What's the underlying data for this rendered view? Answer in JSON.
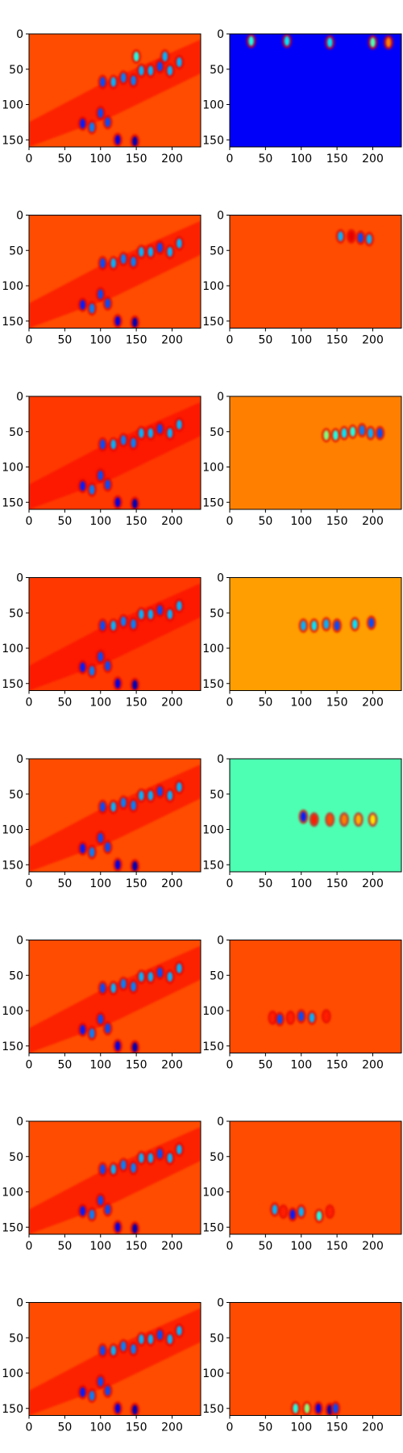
{
  "figure": {
    "rows": 8,
    "cols": 2,
    "colormap": "jet",
    "image_extent": {
      "x": [
        0,
        240
      ],
      "y": [
        0,
        160
      ]
    },
    "x_ticks": [
      0,
      50,
      100,
      150,
      200
    ],
    "y_ticks": [
      0,
      50,
      100,
      150
    ],
    "y_axis_inverted": true
  },
  "chart_data": {
    "type": "heatmap",
    "colormap": "jet",
    "xlim": [
      0,
      240
    ],
    "ylim": [
      160,
      0
    ],
    "grid": false,
    "panels": [
      {
        "row": 1,
        "col": 1,
        "background": 0.8,
        "content": "full scene: bright elongated blobs in diagonal band from lower-left to upper-right",
        "blobs": [
          [
            75,
            127,
            0.15
          ],
          [
            88,
            132,
            0.25
          ],
          [
            100,
            112,
            0.2
          ],
          [
            110,
            125,
            0.2
          ],
          [
            124,
            150,
            0.1
          ],
          [
            148,
            152,
            0.05
          ],
          [
            103,
            68,
            0.2
          ],
          [
            118,
            68,
            0.3
          ],
          [
            132,
            62,
            0.25
          ],
          [
            146,
            66,
            0.25
          ],
          [
            157,
            52,
            0.3
          ],
          [
            170,
            52,
            0.3
          ],
          [
            183,
            46,
            0.2
          ],
          [
            197,
            52,
            0.3
          ],
          [
            210,
            40,
            0.3
          ],
          [
            150,
            32,
            0.4
          ],
          [
            190,
            32,
            0.3
          ]
        ]
      },
      {
        "row": 1,
        "col": 2,
        "background": 0.12,
        "content": "mostly dark blue with bright cyan/yellow band along the top rows",
        "blobs": [
          [
            30,
            10,
            0.4
          ],
          [
            80,
            10,
            0.35
          ],
          [
            140,
            12,
            0.35
          ],
          [
            200,
            12,
            0.45
          ],
          [
            222,
            12,
            0.75
          ]
        ]
      },
      {
        "row": 2,
        "col": 1,
        "background": 0.8,
        "content": "full scene, similar to row 1",
        "blobs": [
          [
            75,
            127,
            0.15
          ],
          [
            88,
            132,
            0.25
          ],
          [
            100,
            112,
            0.2
          ],
          [
            110,
            125,
            0.2
          ],
          [
            124,
            150,
            0.1
          ],
          [
            148,
            152,
            0.05
          ],
          [
            103,
            68,
            0.2
          ],
          [
            118,
            68,
            0.3
          ],
          [
            132,
            62,
            0.25
          ],
          [
            146,
            66,
            0.25
          ],
          [
            157,
            52,
            0.3
          ],
          [
            170,
            52,
            0.3
          ],
          [
            183,
            46,
            0.2
          ],
          [
            197,
            52,
            0.3
          ],
          [
            210,
            40,
            0.3
          ]
        ]
      },
      {
        "row": 2,
        "col": 2,
        "background": 0.8,
        "content": "flat orange with a narrow active band near y=30",
        "blobs": [
          [
            155,
            30,
            0.3
          ],
          [
            170,
            30,
            0.9
          ],
          [
            183,
            32,
            0.2
          ],
          [
            195,
            34,
            0.3
          ]
        ]
      },
      {
        "row": 3,
        "col": 1,
        "background": 0.82,
        "content": "full scene",
        "blobs": [
          [
            75,
            127,
            0.15
          ],
          [
            88,
            132,
            0.25
          ],
          [
            100,
            112,
            0.2
          ],
          [
            110,
            125,
            0.2
          ],
          [
            124,
            150,
            0.1
          ],
          [
            148,
            152,
            0.05
          ],
          [
            103,
            68,
            0.2
          ],
          [
            118,
            68,
            0.3
          ],
          [
            132,
            62,
            0.25
          ],
          [
            146,
            66,
            0.25
          ],
          [
            157,
            52,
            0.3
          ],
          [
            170,
            52,
            0.3
          ],
          [
            183,
            46,
            0.2
          ],
          [
            197,
            52,
            0.3
          ],
          [
            210,
            40,
            0.3
          ]
        ]
      },
      {
        "row": 3,
        "col": 2,
        "background": 0.75,
        "content": "flat orange with active band near y=50",
        "blobs": [
          [
            135,
            55,
            0.5
          ],
          [
            148,
            55,
            0.4
          ],
          [
            160,
            52,
            0.35
          ],
          [
            172,
            50,
            0.4
          ],
          [
            185,
            48,
            0.25
          ],
          [
            197,
            52,
            0.3
          ],
          [
            210,
            52,
            0.2
          ]
        ]
      },
      {
        "row": 4,
        "col": 1,
        "background": 0.82,
        "content": "full scene",
        "blobs": [
          [
            75,
            127,
            0.15
          ],
          [
            88,
            132,
            0.25
          ],
          [
            100,
            112,
            0.2
          ],
          [
            110,
            125,
            0.2
          ],
          [
            124,
            150,
            0.1
          ],
          [
            148,
            152,
            0.05
          ],
          [
            103,
            68,
            0.2
          ],
          [
            118,
            68,
            0.3
          ],
          [
            132,
            62,
            0.25
          ],
          [
            146,
            66,
            0.25
          ],
          [
            157,
            52,
            0.3
          ],
          [
            170,
            52,
            0.3
          ],
          [
            183,
            46,
            0.2
          ],
          [
            197,
            52,
            0.3
          ],
          [
            210,
            40,
            0.3
          ]
        ]
      },
      {
        "row": 4,
        "col": 2,
        "background": 0.72,
        "content": "flat orange-yellow with active band near y=68",
        "blobs": [
          [
            103,
            68,
            0.3
          ],
          [
            118,
            68,
            0.35
          ],
          [
            135,
            66,
            0.3
          ],
          [
            150,
            68,
            0.2
          ],
          [
            175,
            66,
            0.35
          ],
          [
            198,
            64,
            0.2
          ]
        ]
      },
      {
        "row": 5,
        "col": 1,
        "background": 0.8,
        "content": "full scene",
        "blobs": [
          [
            75,
            127,
            0.15
          ],
          [
            88,
            132,
            0.25
          ],
          [
            100,
            112,
            0.2
          ],
          [
            110,
            125,
            0.2
          ],
          [
            124,
            150,
            0.1
          ],
          [
            148,
            152,
            0.05
          ],
          [
            103,
            68,
            0.2
          ],
          [
            118,
            68,
            0.3
          ],
          [
            132,
            62,
            0.25
          ],
          [
            146,
            66,
            0.25
          ],
          [
            157,
            52,
            0.3
          ],
          [
            170,
            52,
            0.3
          ],
          [
            183,
            46,
            0.2
          ],
          [
            197,
            52,
            0.3
          ],
          [
            210,
            40,
            0.3
          ]
        ]
      },
      {
        "row": 5,
        "col": 2,
        "background": 0.45,
        "content": "uniform green with horizontal band near y=85",
        "blobs": [
          [
            103,
            82,
            0.15
          ],
          [
            118,
            86,
            0.85
          ],
          [
            140,
            86,
            0.8
          ],
          [
            160,
            86,
            0.75
          ],
          [
            180,
            86,
            0.7
          ],
          [
            200,
            86,
            0.65
          ]
        ]
      },
      {
        "row": 6,
        "col": 1,
        "background": 0.8,
        "content": "full scene",
        "blobs": [
          [
            75,
            127,
            0.15
          ],
          [
            88,
            132,
            0.25
          ],
          [
            100,
            112,
            0.2
          ],
          [
            110,
            125,
            0.2
          ],
          [
            124,
            150,
            0.1
          ],
          [
            148,
            152,
            0.05
          ],
          [
            103,
            68,
            0.2
          ],
          [
            118,
            68,
            0.3
          ],
          [
            132,
            62,
            0.25
          ],
          [
            146,
            66,
            0.25
          ],
          [
            157,
            52,
            0.3
          ],
          [
            170,
            52,
            0.3
          ],
          [
            183,
            46,
            0.2
          ],
          [
            197,
            52,
            0.3
          ],
          [
            210,
            40,
            0.3
          ]
        ]
      },
      {
        "row": 6,
        "col": 2,
        "background": 0.8,
        "content": "flat orange with active band near y=110",
        "blobs": [
          [
            60,
            110,
            0.85
          ],
          [
            70,
            112,
            0.2
          ],
          [
            85,
            110,
            0.85
          ],
          [
            100,
            108,
            0.2
          ],
          [
            115,
            110,
            0.3
          ],
          [
            135,
            108,
            0.85
          ]
        ]
      },
      {
        "row": 7,
        "col": 1,
        "background": 0.8,
        "content": "full scene",
        "blobs": [
          [
            75,
            127,
            0.15
          ],
          [
            88,
            132,
            0.25
          ],
          [
            100,
            112,
            0.2
          ],
          [
            110,
            125,
            0.2
          ],
          [
            124,
            150,
            0.1
          ],
          [
            148,
            152,
            0.05
          ],
          [
            103,
            68,
            0.2
          ],
          [
            118,
            68,
            0.3
          ],
          [
            132,
            62,
            0.25
          ],
          [
            146,
            66,
            0.25
          ],
          [
            157,
            52,
            0.3
          ],
          [
            170,
            52,
            0.3
          ],
          [
            183,
            46,
            0.2
          ],
          [
            197,
            52,
            0.3
          ],
          [
            210,
            40,
            0.3
          ]
        ]
      },
      {
        "row": 7,
        "col": 2,
        "background": 0.8,
        "content": "flat orange with active band near y=127",
        "blobs": [
          [
            63,
            125,
            0.3
          ],
          [
            75,
            128,
            0.85
          ],
          [
            88,
            132,
            0.15
          ],
          [
            100,
            128,
            0.3
          ],
          [
            125,
            134,
            0.4
          ],
          [
            140,
            128,
            0.85
          ]
        ]
      },
      {
        "row": 8,
        "col": 1,
        "background": 0.8,
        "content": "full scene",
        "blobs": [
          [
            75,
            127,
            0.15
          ],
          [
            88,
            132,
            0.25
          ],
          [
            100,
            112,
            0.2
          ],
          [
            110,
            125,
            0.2
          ],
          [
            124,
            150,
            0.1
          ],
          [
            148,
            152,
            0.05
          ],
          [
            103,
            68,
            0.2
          ],
          [
            118,
            68,
            0.3
          ],
          [
            132,
            62,
            0.25
          ],
          [
            146,
            66,
            0.25
          ],
          [
            157,
            52,
            0.3
          ],
          [
            170,
            52,
            0.3
          ],
          [
            183,
            46,
            0.2
          ],
          [
            197,
            52,
            0.3
          ],
          [
            210,
            40,
            0.3
          ]
        ]
      },
      {
        "row": 8,
        "col": 2,
        "background": 0.8,
        "content": "flat orange with active band near y=150 at bottom",
        "blobs": [
          [
            92,
            150,
            0.4
          ],
          [
            108,
            150,
            0.5
          ],
          [
            124,
            150,
            0.1
          ],
          [
            140,
            152,
            0.05
          ],
          [
            148,
            150,
            0.2
          ]
        ]
      }
    ]
  }
}
